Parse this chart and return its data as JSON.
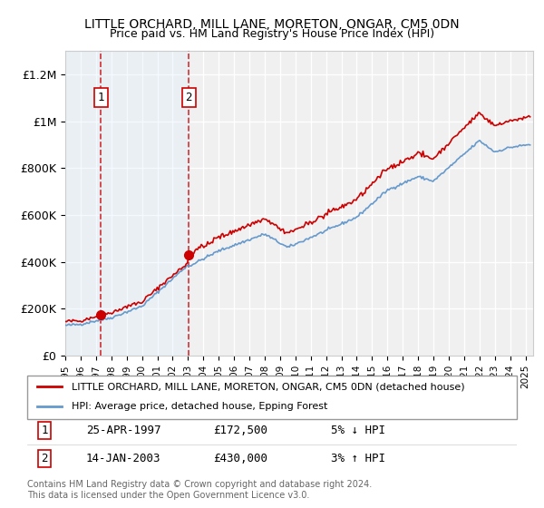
{
  "title1": "LITTLE ORCHARD, MILL LANE, MORETON, ONGAR, CM5 0DN",
  "title2": "Price paid vs. HM Land Registry's House Price Index (HPI)",
  "ylabel": "",
  "xlim_start": 1995.0,
  "xlim_end": 2025.5,
  "ylim_min": 0,
  "ylim_max": 1300000,
  "yticks": [
    0,
    200000,
    400000,
    600000,
    800000,
    1000000,
    1200000
  ],
  "ytick_labels": [
    "£0",
    "£200K",
    "£400K",
    "£600K",
    "£800K",
    "£1M",
    "£1.2M"
  ],
  "sale1_year": 1997.31,
  "sale1_price": 172500,
  "sale2_year": 2003.04,
  "sale2_price": 430000,
  "line_color_property": "#cc0000",
  "line_color_hpi": "#6699cc",
  "dot_color": "#cc0000",
  "vline_color": "#cc0000",
  "shade_color": "#ddeeff",
  "legend_label_property": "LITTLE ORCHARD, MILL LANE, MORETON, ONGAR, CM5 0DN (detached house)",
  "legend_label_hpi": "HPI: Average price, detached house, Epping Forest",
  "table_row1": [
    "1",
    "25-APR-1997",
    "£172,500",
    "5% ↓ HPI"
  ],
  "table_row2": [
    "2",
    "14-JAN-2003",
    "£430,000",
    "3% ↑ HPI"
  ],
  "footnote": "Contains HM Land Registry data © Crown copyright and database right 2024.\nThis data is licensed under the Open Government Licence v3.0.",
  "background_color": "#ffffff",
  "plot_bg_color": "#f0f0f0",
  "grid_color": "#ffffff"
}
